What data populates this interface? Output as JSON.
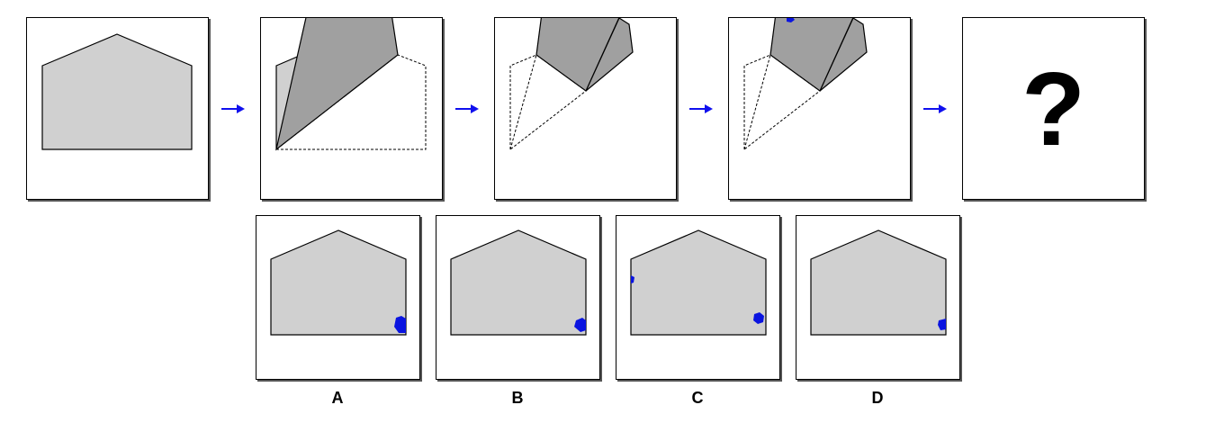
{
  "sequence": {
    "question_mark": "?"
  },
  "options": [
    {
      "label": "A"
    },
    {
      "label": "B"
    },
    {
      "label": "C"
    },
    {
      "label": "D"
    }
  ],
  "colors": {
    "paper_fill": "#d0d0d0",
    "folded_fill": "#a0a0a0",
    "outline": "#000000",
    "arrow": "#1010ee",
    "hole": "#0a14e0"
  }
}
